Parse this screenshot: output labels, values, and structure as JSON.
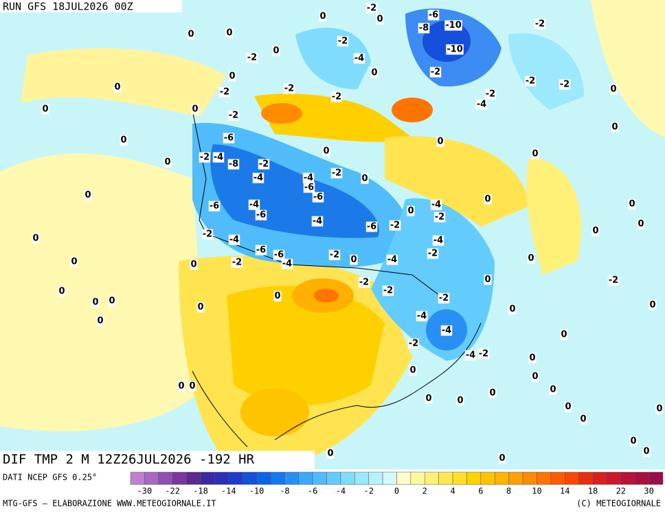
{
  "header": {
    "run": "RUN GFS 18JUL2026 00Z",
    "field": "DIF TMP 2 M 12Z26JUL2026 -192 HR"
  },
  "footer": {
    "source": "DATI NCEP GFS 0.25°",
    "credit": "MTG-GFS – ELABORAZIONE WWW.METEOGIORNALE.IT",
    "copyright": "(C) METEOGIORNALE"
  },
  "colorbar": {
    "ticks": [
      -30,
      -22,
      -18,
      -14,
      -10,
      -8,
      -6,
      -4,
      -2,
      0,
      2,
      4,
      6,
      8,
      10,
      14,
      18,
      22,
      30
    ],
    "colors": [
      "#c080d0",
      "#a868c0",
      "#9050b0",
      "#7838a0",
      "#602890",
      "#3c28a0",
      "#2830b8",
      "#1c3ccc",
      "#1450dc",
      "#0c64e8",
      "#1478f0",
      "#2890f4",
      "#3ca8f8",
      "#50bcfa",
      "#64ccfc",
      "#80dcfc",
      "#9ce8fc",
      "#b8f0fc",
      "#d4f8fc",
      "#fffcc8",
      "#fff8a0",
      "#fff078",
      "#ffe850",
      "#ffe028",
      "#ffd400",
      "#ffc400",
      "#ffb400",
      "#ffa000",
      "#ff8c00",
      "#ff7400",
      "#ff5c00",
      "#f84800",
      "#e83010",
      "#d82020",
      "#c81830",
      "#b81438",
      "#a81040",
      "#981048"
    ]
  },
  "map": {
    "labels": [
      0,
      -2,
      0,
      -6,
      -10,
      -8,
      -10,
      -2,
      -2,
      -2,
      -2,
      0,
      -2,
      -4,
      0,
      0,
      0,
      0,
      -2,
      0,
      0,
      -2,
      -2,
      -2,
      0,
      -2,
      -4,
      0,
      0,
      -2,
      0,
      -6,
      0,
      -2,
      -4,
      -8,
      -2,
      -4,
      -4,
      -6,
      -2,
      0,
      0,
      0,
      0,
      0,
      -6,
      -4,
      -6,
      -6,
      -4,
      -6,
      -2,
      -4,
      -2,
      0,
      0,
      0,
      0,
      0,
      0,
      -2,
      -4,
      -6,
      -6,
      -4,
      -2,
      0,
      -4,
      -4,
      -2,
      -2,
      0,
      0,
      0,
      -2,
      -2,
      0,
      -2,
      0,
      0,
      0,
      0,
      0,
      0,
      -2,
      0,
      0,
      -4,
      -4,
      0,
      -2,
      -4,
      -2,
      0,
      0,
      0,
      0,
      0,
      0,
      0,
      0,
      0,
      0,
      0,
      0,
      0,
      0,
      0,
      0
    ]
  }
}
